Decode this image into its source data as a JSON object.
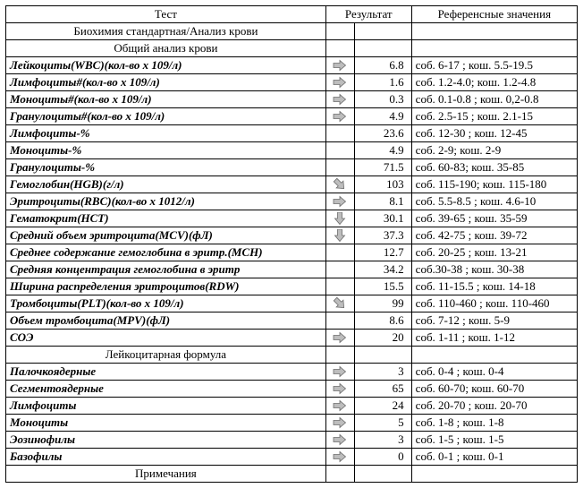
{
  "headers": {
    "test": "Тест",
    "result": "Результат",
    "reference": "Референсные значения"
  },
  "sections": {
    "biochem": "Биохимия стандартная/Анализ крови",
    "cbc": "Общий анализ крови",
    "diff": "Лейкоцитарная формула",
    "notes": "Примечания"
  },
  "icon_colors": {
    "arrow_fill": "#bdbdbd",
    "arrow_stroke": "#6b6b6b"
  },
  "rows": [
    {
      "name": "Лейкоциты(WBC)(кол-во х 109/л)",
      "icon": "right",
      "result": "6.8",
      "ref": "соб. 6-17 ; кош. 5.5-19.5"
    },
    {
      "name": "Лимфоциты#(кол-во х 109/л)",
      "icon": "right",
      "result": "1.6",
      "ref": "соб. 1.2-4.0; кош. 1.2-4.8"
    },
    {
      "name": "Моноциты#(кол-во х 109/л)",
      "icon": "right",
      "result": "0.3",
      "ref": "соб. 0.1-0.8 ; кош. 0,2-0.8"
    },
    {
      "name": "Гранулоциты#(кол-во х 109/л)",
      "icon": "right",
      "result": "4.9",
      "ref": "соб. 2.5-15 ; кош. 2.1-15"
    },
    {
      "name": "Лимфоциты-%",
      "icon": "",
      "result": "23.6",
      "ref": "соб. 12-30 ; кош. 12-45"
    },
    {
      "name": "Моноциты-%",
      "icon": "",
      "result": "4.9",
      "ref": "соб. 2-9; кош. 2-9"
    },
    {
      "name": "Гранулоциты-%",
      "icon": "",
      "result": "71.5",
      "ref": "соб.  60-83; кош. 35-85"
    },
    {
      "name": "Гемоглобин(HGB)(г/л)",
      "icon": "down-right",
      "result": "103",
      "ref": "соб. 115-190; кош. 115-180"
    },
    {
      "name": "Эритроциты(RBC)(кол-во х 1012/л)",
      "icon": "right",
      "result": "8.1",
      "ref": "соб. 5.5-8.5 ; кош. 4.6-10"
    },
    {
      "name": "Гематокрит(HCT)",
      "icon": "down",
      "result": "30.1",
      "ref": "соб. 39-65 ; кош. 35-59"
    },
    {
      "name": "Средний объем эритроцита(MCV)(фЛ)",
      "icon": "down",
      "result": "37.3",
      "ref": "соб. 42-75 ; кош. 39-72"
    },
    {
      "name": "Среднее содержание гемоглобина в эритр.(MCH)",
      "icon": "",
      "result": "12.7",
      "ref": "соб. 20-25 ; кош. 13-21"
    },
    {
      "name": "Средняя концентрация гемоглобина в эритр",
      "icon": "",
      "result": "34.2",
      "ref": "соб.30-38  ; кош. 30-38"
    },
    {
      "name": "Ширина распределения эритроцитов(RDW)",
      "icon": "",
      "result": "15.5",
      "ref": "соб. 11-15.5 ; кош. 14-18"
    },
    {
      "name": "Тромбоциты(PLT)(кол-во х 109/л)",
      "icon": "down-right",
      "result": "99",
      "ref": "соб. 110-460 ; кош. 110-460"
    },
    {
      "name": "Объем тромбоцита(MPV)(фЛ)",
      "icon": "",
      "result": "8.6",
      "ref": "соб. 7-12 ; кош. 5-9"
    },
    {
      "name": "СОЭ",
      "icon": "right",
      "result": "20",
      "ref": "соб. 1-11 ; кош. 1-12"
    }
  ],
  "diff_rows": [
    {
      "name": "Палочкоядерные",
      "icon": "right",
      "result": "3",
      "ref": "соб. 0-4 ; кош. 0-4"
    },
    {
      "name": "Сегментоядерные",
      "icon": "right",
      "result": "65",
      "ref": "соб. 60-70; кош. 60-70"
    },
    {
      "name": "Лимфоциты",
      "icon": "right",
      "result": "24",
      "ref": "соб. 20-70 ; кош. 20-70"
    },
    {
      "name": "Моноциты",
      "icon": "right",
      "result": "5",
      "ref": "соб. 1-8 ; кош. 1-8"
    },
    {
      "name": "Эозинофилы",
      "icon": "right",
      "result": "3",
      "ref": "соб. 1-5 ; кош. 1-5"
    },
    {
      "name": "Базофилы",
      "icon": "right",
      "result": "0",
      "ref": "соб. 0-1 ; кош. 0-1"
    }
  ]
}
